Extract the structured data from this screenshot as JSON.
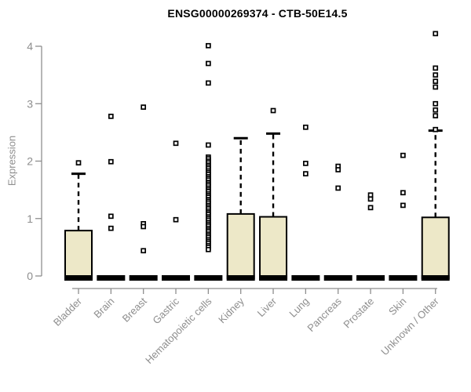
{
  "title": "ENSG00000269374 - CTB-50E14.5",
  "y_axis_label": "Expression",
  "chart_data": {
    "type": "boxplot",
    "title": "ENSG00000269374 - CTB-50E14.5",
    "ylabel": "Expression",
    "xlabel": "",
    "ylim": [
      0,
      4.35
    ],
    "yticks": [
      0,
      1,
      2,
      3,
      4
    ],
    "grid": false,
    "legend": "none",
    "categories": [
      "Bladder",
      "Brain",
      "Breast",
      "Gastric",
      "Hematopoietic cells",
      "Kidney",
      "Liver",
      "Lung",
      "Pancreas",
      "Prostate",
      "Skin",
      "Unknown / Other"
    ],
    "series": [
      {
        "category": "Bladder",
        "q1": 0,
        "median": 0,
        "q3": 0.79,
        "whisker_low": 0,
        "whisker_high": 1.78,
        "outliers": [
          1.97
        ]
      },
      {
        "category": "Brain",
        "q1": 0,
        "median": 0,
        "q3": 0,
        "whisker_low": 0,
        "whisker_high": 0,
        "outliers": [
          2.78,
          1.99,
          1.04,
          0.83
        ]
      },
      {
        "category": "Breast",
        "q1": 0,
        "median": 0,
        "q3": 0,
        "whisker_low": 0,
        "whisker_high": 0,
        "outliers": [
          2.94,
          0.91,
          0.86,
          0.44
        ]
      },
      {
        "category": "Gastric",
        "q1": 0,
        "median": 0,
        "q3": 0,
        "whisker_low": 0,
        "whisker_high": 0,
        "outliers": [
          2.31,
          0.98
        ]
      },
      {
        "category": "Hematopoietic cells",
        "q1": 0,
        "median": 0,
        "q3": 0,
        "whisker_low": 0,
        "whisker_high": 0,
        "outliers": [
          4.01,
          3.7,
          3.36,
          2.28,
          2.07,
          2.04,
          2.0,
          1.97,
          1.93,
          1.9,
          1.87,
          1.83,
          1.8,
          1.77,
          1.73,
          1.7,
          1.67,
          1.63,
          1.6,
          1.57,
          1.53,
          1.5,
          1.47,
          1.43,
          1.4,
          1.37,
          1.33,
          1.3,
          1.27,
          1.23,
          1.2,
          1.17,
          1.13,
          1.1,
          1.07,
          1.03,
          1.0,
          0.97,
          0.93,
          0.9,
          0.87,
          0.83,
          0.8,
          0.77,
          0.73,
          0.7,
          0.67,
          0.63,
          0.6,
          0.57,
          0.53,
          0.5,
          0.46
        ]
      },
      {
        "category": "Kidney",
        "q1": 0,
        "median": 0,
        "q3": 1.08,
        "whisker_low": 0,
        "whisker_high": 2.4,
        "outliers": []
      },
      {
        "category": "Liver",
        "q1": 0,
        "median": 0,
        "q3": 1.03,
        "whisker_low": 0,
        "whisker_high": 2.48,
        "outliers": [
          2.88
        ]
      },
      {
        "category": "Lung",
        "q1": 0,
        "median": 0,
        "q3": 0,
        "whisker_low": 0,
        "whisker_high": 0,
        "outliers": [
          2.59,
          1.96,
          1.78
        ]
      },
      {
        "category": "Pancreas",
        "q1": 0,
        "median": 0,
        "q3": 0,
        "whisker_low": 0,
        "whisker_high": 0,
        "outliers": [
          1.91,
          1.85,
          1.53
        ]
      },
      {
        "category": "Prostate",
        "q1": 0,
        "median": 0,
        "q3": 0,
        "whisker_low": 0,
        "whisker_high": 0,
        "outliers": [
          1.41,
          1.34,
          1.19
        ]
      },
      {
        "category": "Skin",
        "q1": 0,
        "median": 0,
        "q3": 0,
        "whisker_low": 0,
        "whisker_high": 0,
        "outliers": [
          2.1,
          1.45,
          1.23
        ]
      },
      {
        "category": "Unknown / Other",
        "q1": 0,
        "median": 0,
        "q3": 1.02,
        "whisker_low": 0,
        "whisker_high": 2.53,
        "outliers": [
          4.22,
          3.62,
          3.5,
          3.39,
          3.29,
          3.0,
          2.89,
          2.79,
          2.55
        ]
      }
    ],
    "colors": {
      "box_fill": "#EDE8C8",
      "box_border": "#000000",
      "median": "#000000",
      "whisker": "#000000",
      "outlier_stroke": "#000000",
      "axis": "#8E8E8E",
      "tick_text": "#8E8E8E",
      "title_text": "#000000",
      "background": "#FFFFFF"
    }
  }
}
